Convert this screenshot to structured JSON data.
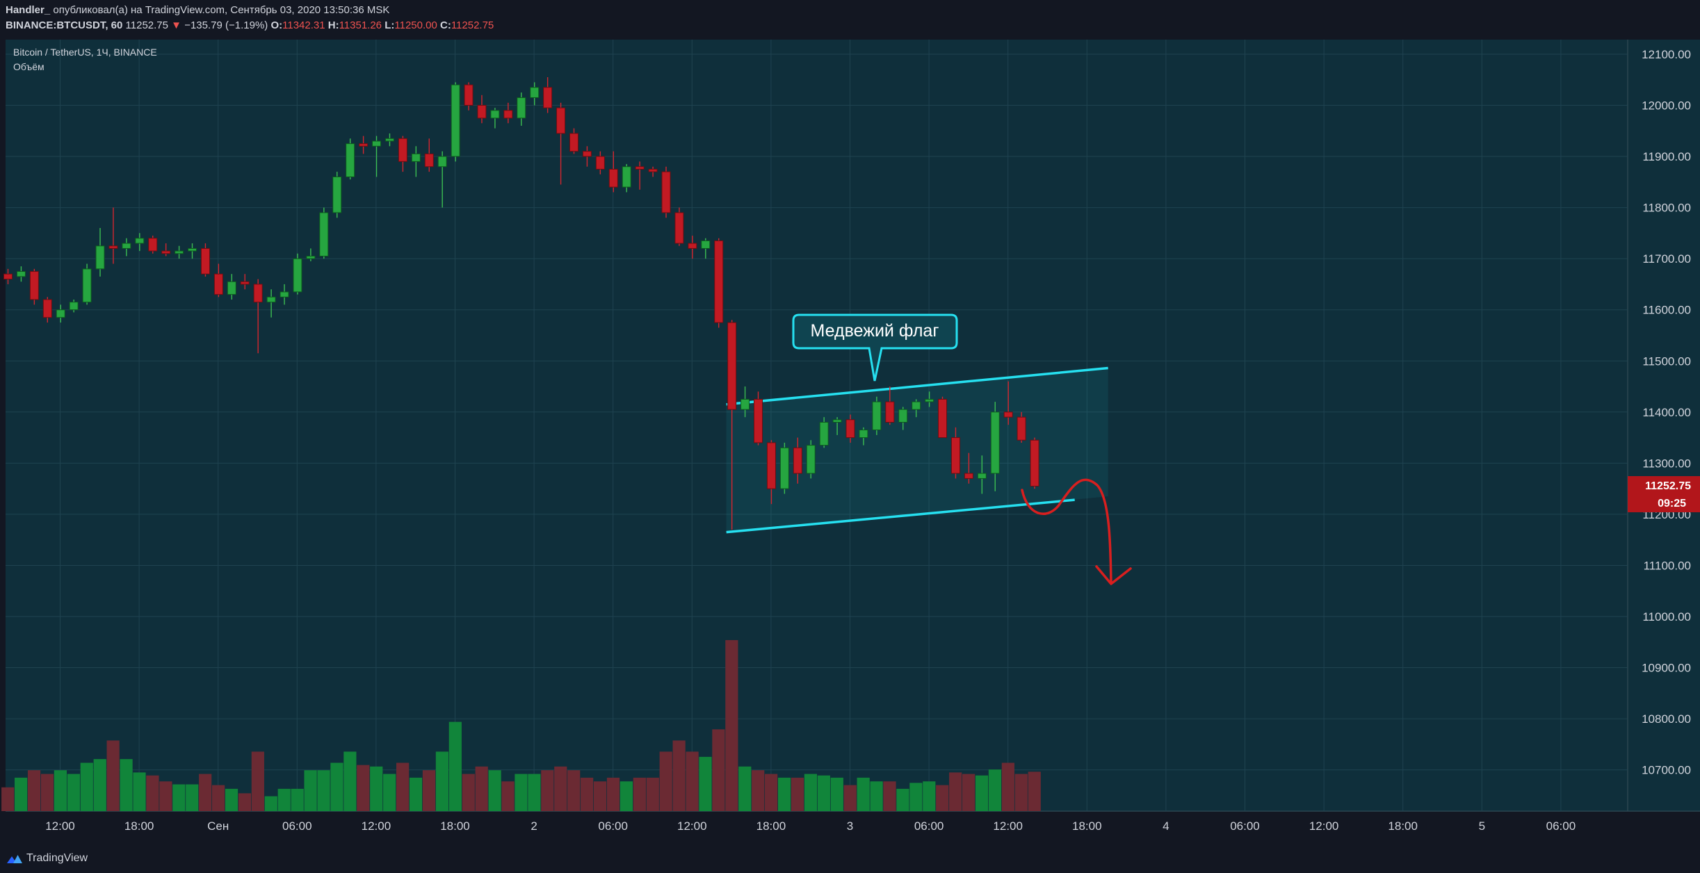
{
  "header": {
    "author": "Handler_",
    "published_text": "опубликовал(а) на TradingView.com, Сентябрь 03, 2020 13:50:36 MSK",
    "symbol": "BINANCE:BTCUSDT, 60",
    "last_price": "11252.75",
    "change_arrow": "▼",
    "change": "−135.79 (−1.19%)",
    "o_label": "O:",
    "o_value": "11342.31",
    "h_label": "H:",
    "h_value": "11351.26",
    "l_label": "L:",
    "l_value": "11250.00",
    "c_label": "C:",
    "c_value": "11252.75"
  },
  "legend": {
    "title": "Bitcoin / TetherUS, 1Ч, BINANCE",
    "volume_label": "Объём"
  },
  "annotation": {
    "callout_text": "Медвежий флаг"
  },
  "price_axis": {
    "labels": [
      "12100.00",
      "12000.00",
      "11900.00",
      "11800.00",
      "11700.00",
      "11600.00",
      "11500.00",
      "11400.00",
      "11300.00",
      "11200.00",
      "11100.00",
      "11000.00",
      "10900.00",
      "10800.00",
      "10700.00"
    ],
    "current_price": "11252.75",
    "countdown": "09:25"
  },
  "time_axis": {
    "labels": [
      "12:00",
      "18:00",
      "Сен",
      "06:00",
      "12:00",
      "18:00",
      "2",
      "06:00",
      "12:00",
      "18:00",
      "3",
      "06:00",
      "12:00",
      "18:00",
      "4",
      "06:00",
      "12:00",
      "18:00",
      "5",
      "06:00"
    ]
  },
  "footer": {
    "brand": "TradingView"
  },
  "colors": {
    "background": "#0f2f3b",
    "up": "#26a640",
    "down": "#c21a23",
    "up_volume": "#11853a",
    "down_volume": "#6b2a33",
    "channel": "#26e0f0",
    "arrow": "#d81f1f",
    "price_tag": "#b2161b"
  },
  "chart_data": {
    "type": "candlestick",
    "title": "Bitcoin / TetherUS, 1Ч, BINANCE",
    "timeframe": "1 hour",
    "ylim": [
      10620,
      12160
    ],
    "candles": [
      [
        11670,
        11680,
        11650,
        11660
      ],
      [
        11665,
        11685,
        11655,
        11675
      ],
      [
        11675,
        11680,
        11610,
        11620
      ],
      [
        11620,
        11625,
        11575,
        11585
      ],
      [
        11585,
        11610,
        11575,
        11600
      ],
      [
        11600,
        11620,
        11595,
        11615
      ],
      [
        11615,
        11690,
        11610,
        11680
      ],
      [
        11680,
        11760,
        11665,
        11725
      ],
      [
        11725,
        11800,
        11690,
        11720
      ],
      [
        11720,
        11740,
        11705,
        11730
      ],
      [
        11730,
        11750,
        11715,
        11740
      ],
      [
        11740,
        11745,
        11710,
        11715
      ],
      [
        11715,
        11730,
        11705,
        11710
      ],
      [
        11710,
        11725,
        11700,
        11715
      ],
      [
        11715,
        11730,
        11700,
        11720
      ],
      [
        11720,
        11730,
        11665,
        11670
      ],
      [
        11670,
        11690,
        11625,
        11630
      ],
      [
        11630,
        11670,
        11620,
        11655
      ],
      [
        11655,
        11670,
        11640,
        11650
      ],
      [
        11650,
        11660,
        11515,
        11615
      ],
      [
        11615,
        11640,
        11585,
        11625
      ],
      [
        11625,
        11650,
        11610,
        11635
      ],
      [
        11635,
        11710,
        11630,
        11700
      ],
      [
        11700,
        11720,
        11695,
        11705
      ],
      [
        11705,
        11800,
        11700,
        11790
      ],
      [
        11790,
        11870,
        11780,
        11860
      ],
      [
        11860,
        11935,
        11855,
        11925
      ],
      [
        11925,
        11940,
        11905,
        11920
      ],
      [
        11920,
        11940,
        11860,
        11930
      ],
      [
        11930,
        11945,
        11920,
        11935
      ],
      [
        11935,
        11940,
        11870,
        11890
      ],
      [
        11890,
        11920,
        11860,
        11905
      ],
      [
        11905,
        11935,
        11870,
        11880
      ],
      [
        11880,
        11910,
        11800,
        11900
      ],
      [
        11900,
        12045,
        11890,
        12040
      ],
      [
        12040,
        12045,
        11990,
        12000
      ],
      [
        12000,
        12020,
        11965,
        11975
      ],
      [
        11975,
        11995,
        11955,
        11990
      ],
      [
        11990,
        12005,
        11965,
        11975
      ],
      [
        11975,
        12025,
        11960,
        12015
      ],
      [
        12015,
        12045,
        12000,
        12035
      ],
      [
        12035,
        12055,
        11985,
        11995
      ],
      [
        11995,
        12005,
        11845,
        11945
      ],
      [
        11945,
        11955,
        11905,
        11910
      ],
      [
        11910,
        11920,
        11880,
        11900
      ],
      [
        11900,
        11910,
        11865,
        11875
      ],
      [
        11875,
        11910,
        11830,
        11840
      ],
      [
        11840,
        11885,
        11830,
        11880
      ],
      [
        11880,
        11890,
        11835,
        11875
      ],
      [
        11875,
        11880,
        11860,
        11870
      ],
      [
        11870,
        11880,
        11780,
        11790
      ],
      [
        11790,
        11800,
        11725,
        11730
      ],
      [
        11730,
        11745,
        11700,
        11720
      ],
      [
        11720,
        11740,
        11700,
        11735
      ],
      [
        11735,
        11740,
        11565,
        11575
      ],
      [
        11575,
        11580,
        11170,
        11405
      ],
      [
        11405,
        11450,
        11390,
        11425
      ],
      [
        11425,
        11440,
        11335,
        11340
      ],
      [
        11340,
        11345,
        11220,
        11250
      ],
      [
        11250,
        11340,
        11240,
        11330
      ],
      [
        11330,
        11350,
        11260,
        11280
      ],
      [
        11280,
        11345,
        11270,
        11335
      ],
      [
        11335,
        11390,
        11330,
        11380
      ],
      [
        11380,
        11390,
        11355,
        11385
      ],
      [
        11385,
        11395,
        11340,
        11350
      ],
      [
        11350,
        11370,
        11335,
        11365
      ],
      [
        11365,
        11430,
        11355,
        11420
      ],
      [
        11420,
        11450,
        11375,
        11380
      ],
      [
        11380,
        11410,
        11365,
        11405
      ],
      [
        11405,
        11425,
        11390,
        11420
      ],
      [
        11420,
        11440,
        11410,
        11425
      ],
      [
        11425,
        11430,
        11350,
        11350
      ],
      [
        11350,
        11370,
        11270,
        11280
      ],
      [
        11280,
        11320,
        11260,
        11270
      ],
      [
        11270,
        11315,
        11240,
        11280
      ],
      [
        11280,
        11420,
        11245,
        11400
      ],
      [
        11400,
        11460,
        11375,
        11390
      ],
      [
        11390,
        11400,
        11340,
        11345
      ],
      [
        11345,
        11350,
        11250,
        11255
      ]
    ],
    "volumes": [
      0.32,
      0.45,
      0.55,
      0.5,
      0.55,
      0.5,
      0.65,
      0.7,
      0.95,
      0.7,
      0.52,
      0.48,
      0.4,
      0.36,
      0.36,
      0.5,
      0.35,
      0.3,
      0.24,
      0.8,
      0.2,
      0.3,
      0.3,
      0.55,
      0.55,
      0.65,
      0.8,
      0.62,
      0.6,
      0.5,
      0.65,
      0.45,
      0.55,
      0.8,
      1.2,
      0.5,
      0.6,
      0.55,
      0.4,
      0.5,
      0.5,
      0.55,
      0.6,
      0.55,
      0.45,
      0.4,
      0.45,
      0.4,
      0.45,
      0.45,
      0.8,
      0.95,
      0.8,
      0.73,
      1.1,
      2.3,
      0.6,
      0.55,
      0.5,
      0.45,
      0.45,
      0.5,
      0.48,
      0.45,
      0.35,
      0.45,
      0.4,
      0.4,
      0.3,
      0.38,
      0.4,
      0.35,
      0.52,
      0.5,
      0.48,
      0.56,
      0.65,
      0.5,
      0.53
    ],
    "price_levels": [
      12100,
      12000,
      11900,
      11800,
      11700,
      11600,
      11500,
      11400,
      11300,
      11200,
      11100,
      11000,
      10900,
      10800,
      10700
    ],
    "bear_flag_channel": {
      "start_bar": 55,
      "end_bar": 83,
      "upper": [
        11415,
        11486
      ],
      "lower": [
        11165,
        11235
      ]
    }
  }
}
